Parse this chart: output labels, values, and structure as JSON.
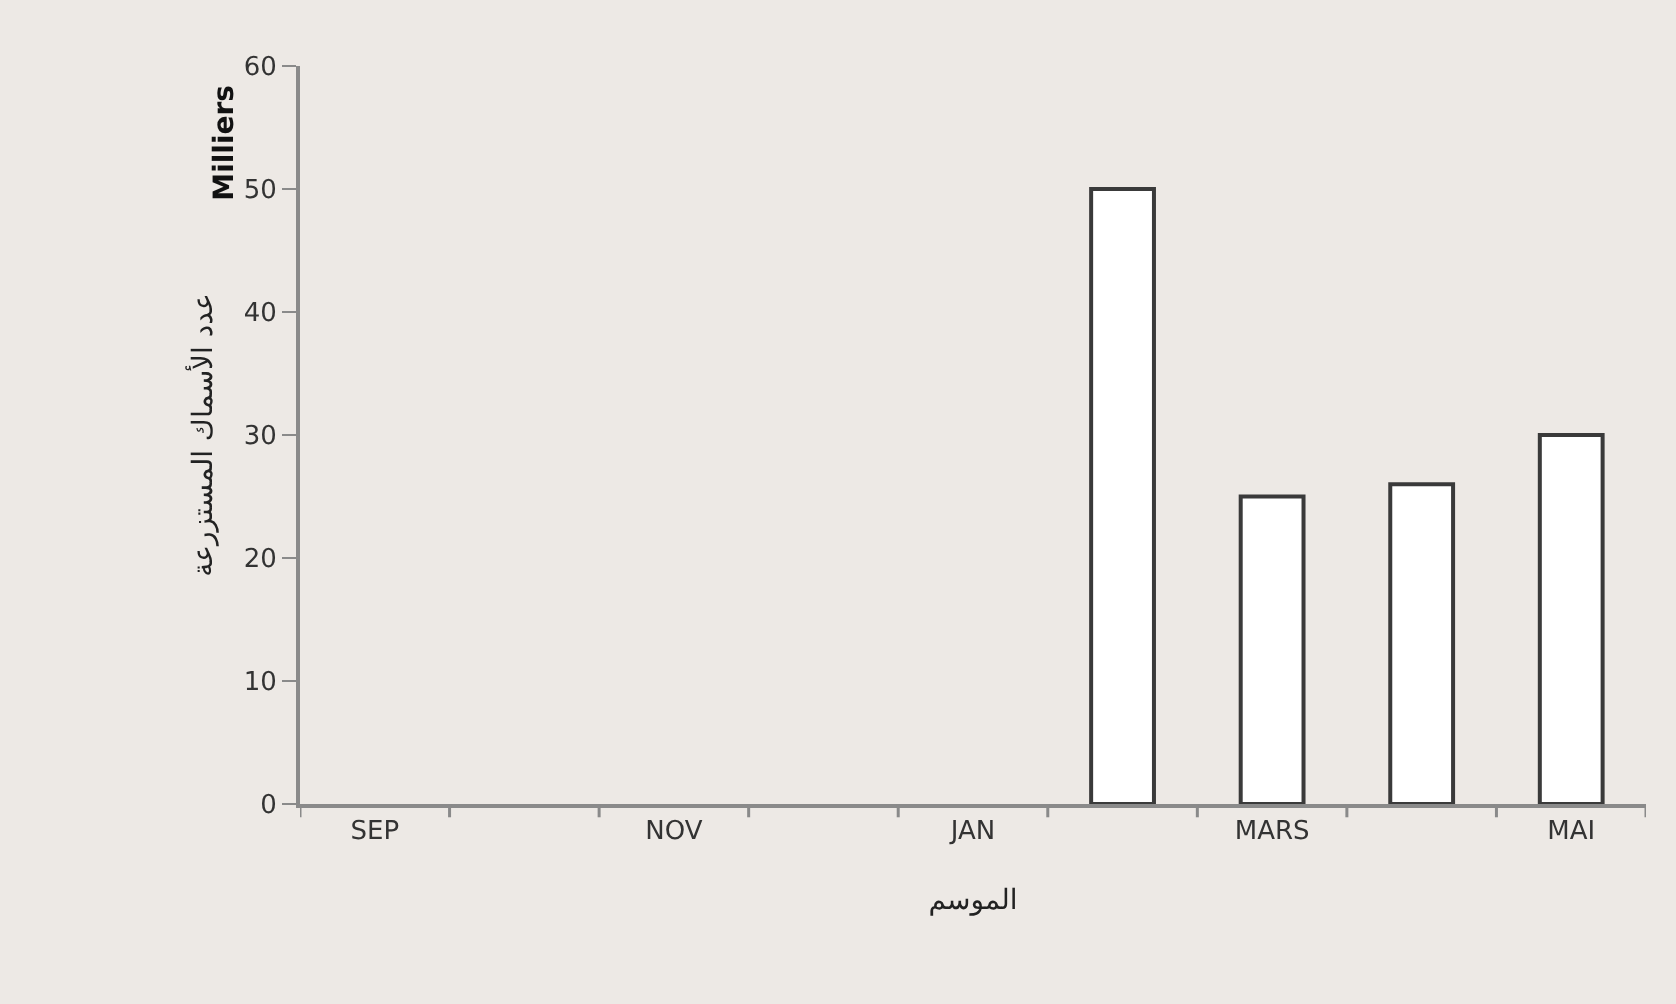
{
  "chart_data": {
    "type": "bar",
    "categories": [
      "SEP",
      null,
      "NOV",
      null,
      "JAN",
      null,
      "MARS",
      null,
      "MAI"
    ],
    "values": [
      null,
      null,
      null,
      null,
      null,
      50,
      25,
      26,
      30
    ],
    "color": "#ffffff",
    "ylim": [
      0,
      60
    ],
    "yticks": [
      0,
      10,
      20,
      30,
      40,
      50,
      60
    ],
    "xlabel": "الموسم",
    "ylabel": "عدد الأسماك المستزرعة",
    "annotations": [
      "Milliers"
    ],
    "grid": false,
    "legend": false
  }
}
